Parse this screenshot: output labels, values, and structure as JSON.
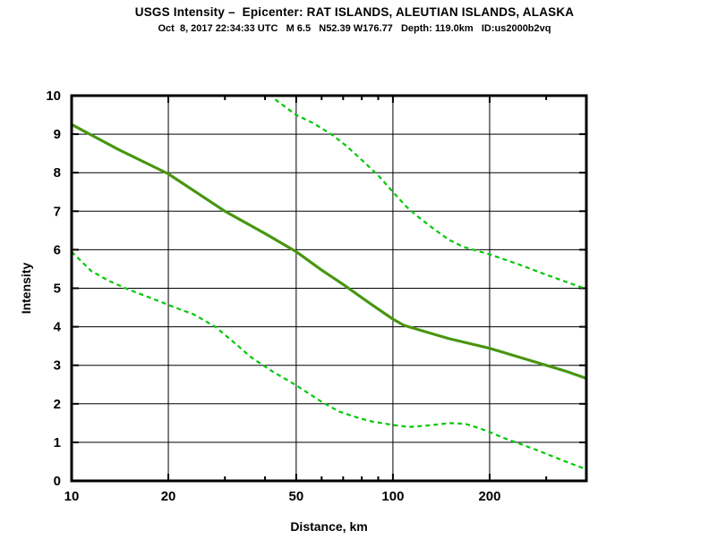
{
  "chart_data": {
    "type": "line",
    "title": "USGS Intensity –  Epicenter: RAT ISLANDS, ALEUTIAN ISLANDS, ALASKA",
    "subtitle": "Oct  8, 2017 22:34:33 UTC   M 6.5   N52.39 W176.77   Depth: 119.0km   ID:us2000b2vq",
    "xlabel": "Distance, km",
    "ylabel": "Intensity",
    "x_scale": "log",
    "xlim": [
      10,
      400
    ],
    "ylim": [
      0,
      10
    ],
    "x_ticks_major": [
      10,
      20,
      50,
      100,
      200
    ],
    "x_tick_labels": [
      "10",
      "20",
      "50",
      "100",
      "200"
    ],
    "x_ticks_minor": [
      30,
      40,
      60,
      70,
      80,
      90,
      300
    ],
    "x_gridlines": [
      20,
      50,
      100,
      200
    ],
    "y_ticks": [
      0,
      1,
      2,
      3,
      4,
      5,
      6,
      7,
      8,
      9,
      10
    ],
    "y_tick_labels": [
      "0",
      "1",
      "2",
      "3",
      "4",
      "5",
      "6",
      "7",
      "8",
      "9",
      "10"
    ],
    "y_gridlines": [
      1,
      2,
      3,
      4,
      5,
      6,
      7,
      8,
      9
    ],
    "grid": true,
    "legend": false,
    "colors": {
      "bound_dashed": "#00c805",
      "median_outer": "#22b022",
      "median_core": "#7a7a00",
      "axis": "#000000",
      "grid": "#000000",
      "background": "#ffffff"
    },
    "series": [
      {
        "name": "median_intensity",
        "style": "solid",
        "points": [
          [
            10,
            9.25
          ],
          [
            14,
            8.6
          ],
          [
            20,
            7.97
          ],
          [
            30,
            7.0
          ],
          [
            40,
            6.42
          ],
          [
            50,
            5.95
          ],
          [
            60,
            5.47
          ],
          [
            70,
            5.1
          ],
          [
            85,
            4.6
          ],
          [
            100,
            4.2
          ],
          [
            108,
            4.04
          ],
          [
            130,
            3.84
          ],
          [
            150,
            3.69
          ],
          [
            200,
            3.44
          ],
          [
            250,
            3.2
          ],
          [
            300,
            3.0
          ],
          [
            350,
            2.83
          ],
          [
            400,
            2.66
          ]
        ]
      },
      {
        "name": "upper_bound",
        "style": "dashed",
        "points": [
          [
            43,
            9.9
          ],
          [
            50,
            9.5
          ],
          [
            57,
            9.27
          ],
          [
            65,
            8.97
          ],
          [
            72,
            8.68
          ],
          [
            80,
            8.33
          ],
          [
            90,
            7.93
          ],
          [
            100,
            7.5
          ],
          [
            110,
            7.12
          ],
          [
            120,
            6.85
          ],
          [
            135,
            6.52
          ],
          [
            150,
            6.25
          ],
          [
            165,
            6.08
          ],
          [
            200,
            5.88
          ],
          [
            250,
            5.6
          ],
          [
            300,
            5.35
          ],
          [
            350,
            5.15
          ],
          [
            400,
            4.98
          ]
        ]
      },
      {
        "name": "lower_bound",
        "style": "dashed",
        "points": [
          [
            10,
            5.95
          ],
          [
            11.5,
            5.45
          ],
          [
            13,
            5.2
          ],
          [
            15,
            4.97
          ],
          [
            18,
            4.72
          ],
          [
            21,
            4.5
          ],
          [
            24,
            4.32
          ],
          [
            28,
            4.0
          ],
          [
            33,
            3.5
          ],
          [
            36,
            3.22
          ],
          [
            42,
            2.85
          ],
          [
            50,
            2.48
          ],
          [
            60,
            2.05
          ],
          [
            68,
            1.8
          ],
          [
            75,
            1.68
          ],
          [
            85,
            1.55
          ],
          [
            100,
            1.45
          ],
          [
            112,
            1.4
          ],
          [
            130,
            1.44
          ],
          [
            150,
            1.5
          ],
          [
            168,
            1.48
          ],
          [
            185,
            1.37
          ],
          [
            200,
            1.27
          ],
          [
            220,
            1.12
          ],
          [
            245,
            0.98
          ],
          [
            280,
            0.8
          ],
          [
            300,
            0.7
          ],
          [
            350,
            0.48
          ],
          [
            400,
            0.3
          ]
        ]
      }
    ]
  }
}
